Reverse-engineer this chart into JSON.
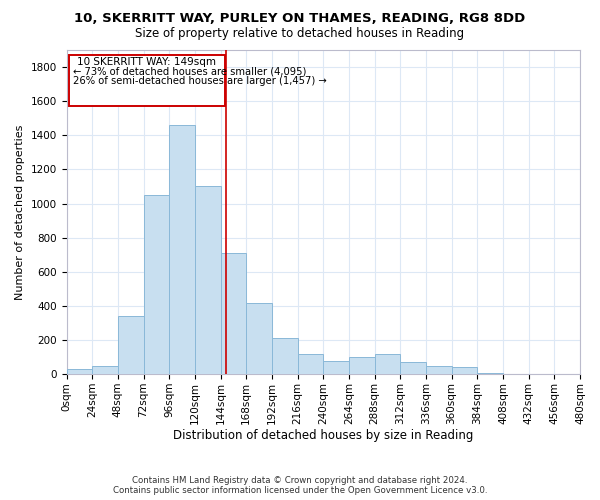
{
  "title": "10, SKERRITT WAY, PURLEY ON THAMES, READING, RG8 8DD",
  "subtitle": "Size of property relative to detached houses in Reading",
  "xlabel": "Distribution of detached houses by size in Reading",
  "ylabel": "Number of detached properties",
  "bar_color": "#c8dff0",
  "bar_edge_color": "#8ab8d8",
  "grid_color": "#dde8f5",
  "vline_color": "#cc0000",
  "property_size": 149,
  "annotation_line1": "10 SKERRITT WAY: 149sqm",
  "annotation_line2": "← 73% of detached houses are smaller (4,095)",
  "annotation_line3": "26% of semi-detached houses are larger (1,457) →",
  "footer_line1": "Contains HM Land Registry data © Crown copyright and database right 2024.",
  "footer_line2": "Contains public sector information licensed under the Open Government Licence v3.0.",
  "bins": [
    0,
    24,
    48,
    72,
    96,
    120,
    144,
    168,
    192,
    216,
    240,
    264,
    288,
    312,
    336,
    360,
    384,
    408,
    432,
    456,
    480
  ],
  "bin_labels": [
    "0sqm",
    "24sqm",
    "48sqm",
    "72sqm",
    "96sqm",
    "120sqm",
    "144sqm",
    "168sqm",
    "192sqm",
    "216sqm",
    "240sqm",
    "264sqm",
    "288sqm",
    "312sqm",
    "336sqm",
    "360sqm",
    "384sqm",
    "408sqm",
    "432sqm",
    "456sqm",
    "480sqm"
  ],
  "counts": [
    28,
    50,
    340,
    1050,
    1460,
    1100,
    710,
    420,
    210,
    120,
    75,
    100,
    120,
    72,
    50,
    42,
    5,
    0,
    0,
    0
  ],
  "ylim_max": 1900,
  "yticks": [
    0,
    200,
    400,
    600,
    800,
    1000,
    1200,
    1400,
    1600,
    1800
  ],
  "background_color": "#ffffff",
  "title_fontsize": 9.5,
  "subtitle_fontsize": 8.5,
  "ylabel_fontsize": 8,
  "xlabel_fontsize": 8.5,
  "tick_fontsize": 7.5,
  "annotation_fontsize": 7.5
}
